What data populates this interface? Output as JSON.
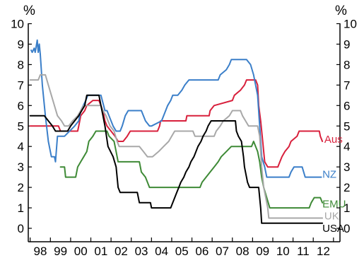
{
  "chart_data": {
    "type": "line",
    "left_unit_label": "%",
    "right_unit_label": "%",
    "ylim": [
      0,
      10
    ],
    "y_ticks": [
      0,
      1,
      2,
      3,
      4,
      5,
      6,
      7,
      8,
      9,
      10
    ],
    "xlim": [
      1997.5,
      2012.5
    ],
    "x_tick_labels": [
      {
        "label": "98",
        "x": 1998
      },
      {
        "label": "99",
        "x": 1999
      },
      {
        "label": "00",
        "x": 2000
      },
      {
        "label": "01",
        "x": 2001
      },
      {
        "label": "02",
        "x": 2002
      },
      {
        "label": "03",
        "x": 2003
      },
      {
        "label": "04",
        "x": 2004
      },
      {
        "label": "05",
        "x": 2005
      },
      {
        "label": "06",
        "x": 2006
      },
      {
        "label": "07",
        "x": 2007
      },
      {
        "label": "08",
        "x": 2008
      },
      {
        "label": "09",
        "x": 2009
      },
      {
        "label": "10",
        "x": 2010
      },
      {
        "label": "11",
        "x": 2011
      },
      {
        "label": "12",
        "x": 2012
      }
    ],
    "series": [
      {
        "name": "Aus",
        "color": "#d8203c",
        "points": [
          [
            1997.5,
            5.0
          ],
          [
            1998.9,
            5.0
          ],
          [
            1999.0,
            4.75
          ],
          [
            1999.85,
            4.75
          ],
          [
            1999.9,
            5.0
          ],
          [
            2000.0,
            5.5
          ],
          [
            2000.2,
            5.75
          ],
          [
            2000.3,
            6.0
          ],
          [
            2000.6,
            6.25
          ],
          [
            2000.9,
            6.25
          ],
          [
            2001.1,
            5.75
          ],
          [
            2001.2,
            5.25
          ],
          [
            2001.3,
            5.0
          ],
          [
            2001.7,
            4.5
          ],
          [
            2001.85,
            4.25
          ],
          [
            2002.1,
            4.25
          ],
          [
            2002.3,
            4.5
          ],
          [
            2002.45,
            4.75
          ],
          [
            2003.8,
            4.75
          ],
          [
            2003.9,
            5.0
          ],
          [
            2003.95,
            5.25
          ],
          [
            2005.2,
            5.25
          ],
          [
            2005.25,
            5.5
          ],
          [
            2006.35,
            5.5
          ],
          [
            2006.4,
            5.75
          ],
          [
            2006.6,
            6.0
          ],
          [
            2007.5,
            6.25
          ],
          [
            2007.6,
            6.5
          ],
          [
            2007.9,
            6.75
          ],
          [
            2008.1,
            7.0
          ],
          [
            2008.2,
            7.25
          ],
          [
            2008.65,
            7.25
          ],
          [
            2008.75,
            7.0
          ],
          [
            2008.8,
            6.0
          ],
          [
            2008.9,
            5.25
          ],
          [
            2009.0,
            4.25
          ],
          [
            2009.1,
            3.25
          ],
          [
            2009.25,
            3.0
          ],
          [
            2009.75,
            3.0
          ],
          [
            2009.85,
            3.25
          ],
          [
            2009.95,
            3.5
          ],
          [
            2010.1,
            3.75
          ],
          [
            2010.3,
            4.0
          ],
          [
            2010.4,
            4.25
          ],
          [
            2010.7,
            4.5
          ],
          [
            2010.8,
            4.75
          ],
          [
            2011.8,
            4.75
          ],
          [
            2011.85,
            4.5
          ],
          [
            2011.95,
            4.25
          ]
        ]
      },
      {
        "name": "NZ",
        "color": "#3b7fc9",
        "points": [
          [
            1997.55,
            8.7
          ],
          [
            1997.6,
            8.6
          ],
          [
            1997.7,
            8.8
          ],
          [
            1997.75,
            8.6
          ],
          [
            1997.8,
            8.9
          ],
          [
            1997.85,
            9.2
          ],
          [
            1997.9,
            8.6
          ],
          [
            1997.95,
            9.0
          ],
          [
            1998.0,
            8.5
          ],
          [
            1998.1,
            7.0
          ],
          [
            1998.25,
            5.5
          ],
          [
            1998.4,
            4.25
          ],
          [
            1998.55,
            3.5
          ],
          [
            1998.7,
            3.5
          ],
          [
            1998.75,
            3.25
          ],
          [
            1998.85,
            4.5
          ],
          [
            1999.2,
            4.5
          ],
          [
            1999.7,
            5.0
          ],
          [
            1999.9,
            5.25
          ],
          [
            2000.0,
            5.75
          ],
          [
            2000.25,
            6.25
          ],
          [
            2000.35,
            6.5
          ],
          [
            2001.0,
            6.5
          ],
          [
            2001.2,
            5.75
          ],
          [
            2001.3,
            5.75
          ],
          [
            2001.5,
            5.25
          ],
          [
            2001.6,
            5.0
          ],
          [
            2001.75,
            4.75
          ],
          [
            2001.95,
            4.75
          ],
          [
            2002.05,
            5.0
          ],
          [
            2002.2,
            5.5
          ],
          [
            2002.35,
            5.75
          ],
          [
            2003.0,
            5.75
          ],
          [
            2003.1,
            5.5
          ],
          [
            2003.2,
            5.25
          ],
          [
            2003.4,
            5.0
          ],
          [
            2003.5,
            5.0
          ],
          [
            2004.0,
            5.25
          ],
          [
            2004.1,
            5.5
          ],
          [
            2004.3,
            6.0
          ],
          [
            2004.45,
            6.25
          ],
          [
            2004.55,
            6.5
          ],
          [
            2004.8,
            6.5
          ],
          [
            2005.0,
            6.75
          ],
          [
            2005.15,
            7.0
          ],
          [
            2005.35,
            7.25
          ],
          [
            2006.8,
            7.25
          ],
          [
            2006.9,
            7.5
          ],
          [
            2007.2,
            7.75
          ],
          [
            2007.35,
            8.0
          ],
          [
            2007.45,
            8.25
          ],
          [
            2008.2,
            8.25
          ],
          [
            2008.4,
            8.0
          ],
          [
            2008.55,
            7.5
          ],
          [
            2008.75,
            6.5
          ],
          [
            2008.85,
            5.0
          ],
          [
            2008.95,
            3.5
          ],
          [
            2009.1,
            3.0
          ],
          [
            2009.2,
            2.5
          ],
          [
            2010.3,
            2.5
          ],
          [
            2010.4,
            2.75
          ],
          [
            2010.55,
            3.0
          ],
          [
            2010.95,
            3.0
          ],
          [
            2011.1,
            2.5
          ],
          [
            2011.9,
            2.5
          ]
        ]
      },
      {
        "name": "EMU",
        "color": "#3e8a36",
        "points": [
          [
            1999.0,
            3.0
          ],
          [
            1999.2,
            3.0
          ],
          [
            1999.25,
            2.5
          ],
          [
            1999.75,
            2.5
          ],
          [
            1999.85,
            3.0
          ],
          [
            2000.0,
            3.25
          ],
          [
            2000.15,
            3.5
          ],
          [
            2000.3,
            3.75
          ],
          [
            2000.4,
            4.25
          ],
          [
            2000.6,
            4.5
          ],
          [
            2000.75,
            4.75
          ],
          [
            2001.3,
            4.75
          ],
          [
            2001.4,
            4.5
          ],
          [
            2001.65,
            4.25
          ],
          [
            2001.75,
            3.75
          ],
          [
            2001.85,
            3.25
          ],
          [
            2002.9,
            3.25
          ],
          [
            2003.0,
            2.75
          ],
          [
            2003.2,
            2.5
          ],
          [
            2003.4,
            2.0
          ],
          [
            2005.9,
            2.0
          ],
          [
            2006.0,
            2.25
          ],
          [
            2006.2,
            2.5
          ],
          [
            2006.4,
            2.75
          ],
          [
            2006.6,
            3.0
          ],
          [
            2006.8,
            3.25
          ],
          [
            2006.95,
            3.5
          ],
          [
            2007.2,
            3.75
          ],
          [
            2007.45,
            4.0
          ],
          [
            2008.45,
            4.0
          ],
          [
            2008.55,
            4.25
          ],
          [
            2008.75,
            3.75
          ],
          [
            2008.85,
            3.25
          ],
          [
            2008.95,
            2.5
          ],
          [
            2009.05,
            2.0
          ],
          [
            2009.2,
            1.5
          ],
          [
            2009.35,
            1.0
          ],
          [
            2011.3,
            1.0
          ],
          [
            2011.4,
            1.25
          ],
          [
            2011.55,
            1.5
          ],
          [
            2011.85,
            1.5
          ],
          [
            2011.95,
            1.25
          ]
        ]
      },
      {
        "name": "UK",
        "color": "#a8a8a8",
        "points": [
          [
            1997.5,
            7.25
          ],
          [
            1997.9,
            7.25
          ],
          [
            1998.0,
            7.5
          ],
          [
            1998.25,
            7.5
          ],
          [
            1998.4,
            7.0
          ],
          [
            1998.55,
            6.5
          ],
          [
            1998.7,
            6.0
          ],
          [
            1998.85,
            5.5
          ],
          [
            1999.05,
            5.25
          ],
          [
            1999.2,
            5.0
          ],
          [
            1999.4,
            5.0
          ],
          [
            1999.6,
            5.25
          ],
          [
            1999.85,
            5.5
          ],
          [
            2000.0,
            5.75
          ],
          [
            2000.15,
            6.0
          ],
          [
            2001.0,
            6.0
          ],
          [
            2001.1,
            5.75
          ],
          [
            2001.25,
            5.5
          ],
          [
            2001.45,
            5.0
          ],
          [
            2001.65,
            4.75
          ],
          [
            2001.8,
            4.25
          ],
          [
            2001.9,
            4.0
          ],
          [
            2002.9,
            4.0
          ],
          [
            2003.1,
            3.75
          ],
          [
            2003.3,
            3.5
          ],
          [
            2003.55,
            3.5
          ],
          [
            2003.85,
            3.75
          ],
          [
            2004.1,
            4.0
          ],
          [
            2004.35,
            4.25
          ],
          [
            2004.5,
            4.5
          ],
          [
            2004.65,
            4.75
          ],
          [
            2005.55,
            4.75
          ],
          [
            2005.65,
            4.5
          ],
          [
            2006.6,
            4.5
          ],
          [
            2006.7,
            4.75
          ],
          [
            2006.9,
            5.0
          ],
          [
            2007.05,
            5.25
          ],
          [
            2007.35,
            5.5
          ],
          [
            2007.5,
            5.75
          ],
          [
            2007.9,
            5.75
          ],
          [
            2008.0,
            5.5
          ],
          [
            2008.15,
            5.25
          ],
          [
            2008.3,
            5.0
          ],
          [
            2008.75,
            5.0
          ],
          [
            2008.85,
            4.5
          ],
          [
            2008.95,
            3.0
          ],
          [
            2009.05,
            2.0
          ],
          [
            2009.15,
            1.5
          ],
          [
            2009.25,
            1.0
          ],
          [
            2009.3,
            0.5
          ],
          [
            2011.95,
            0.5
          ]
        ]
      },
      {
        "name": "USA",
        "color": "#000000",
        "points": [
          [
            1997.5,
            5.5
          ],
          [
            1998.2,
            5.5
          ],
          [
            1998.4,
            5.25
          ],
          [
            1998.6,
            5.0
          ],
          [
            1998.75,
            4.75
          ],
          [
            1999.35,
            4.75
          ],
          [
            1999.5,
            5.0
          ],
          [
            1999.7,
            5.25
          ],
          [
            1999.9,
            5.5
          ],
          [
            2000.05,
            5.75
          ],
          [
            2000.2,
            6.0
          ],
          [
            2000.3,
            6.5
          ],
          [
            2000.9,
            6.5
          ],
          [
            2001.0,
            6.0
          ],
          [
            2001.1,
            5.5
          ],
          [
            2001.2,
            5.0
          ],
          [
            2001.35,
            4.0
          ],
          [
            2001.6,
            3.5
          ],
          [
            2001.75,
            3.0
          ],
          [
            2001.85,
            2.0
          ],
          [
            2001.95,
            1.75
          ],
          [
            2002.8,
            1.75
          ],
          [
            2002.9,
            1.25
          ],
          [
            2003.45,
            1.25
          ],
          [
            2003.5,
            1.0
          ],
          [
            2004.45,
            1.0
          ],
          [
            2004.55,
            1.25
          ],
          [
            2004.65,
            1.5
          ],
          [
            2004.75,
            1.75
          ],
          [
            2004.85,
            2.0
          ],
          [
            2004.95,
            2.25
          ],
          [
            2005.1,
            2.5
          ],
          [
            2005.2,
            2.75
          ],
          [
            2005.35,
            3.0
          ],
          [
            2005.45,
            3.25
          ],
          [
            2005.6,
            3.5
          ],
          [
            2005.7,
            3.75
          ],
          [
            2005.8,
            4.0
          ],
          [
            2005.95,
            4.25
          ],
          [
            2006.05,
            4.5
          ],
          [
            2006.2,
            4.75
          ],
          [
            2006.3,
            5.0
          ],
          [
            2006.45,
            5.25
          ],
          [
            2007.65,
            5.25
          ],
          [
            2007.7,
            4.75
          ],
          [
            2007.8,
            4.5
          ],
          [
            2007.95,
            4.25
          ],
          [
            2008.05,
            3.5
          ],
          [
            2008.1,
            3.0
          ],
          [
            2008.25,
            2.25
          ],
          [
            2008.35,
            2.0
          ],
          [
            2008.8,
            2.0
          ],
          [
            2008.85,
            1.5
          ],
          [
            2008.9,
            1.0
          ],
          [
            2008.95,
            0.25
          ],
          [
            2011.95,
            0.25
          ]
        ]
      }
    ],
    "series_labels": [
      {
        "text": "Aus",
        "series": "Aus",
        "x": 2012.05,
        "y": 4.35
      },
      {
        "text": "NZ",
        "series": "NZ",
        "x": 2011.95,
        "y": 2.65
      },
      {
        "text": "EMU",
        "series": "EMU",
        "x": 2011.95,
        "y": 1.2
      },
      {
        "text": "UK",
        "series": "UK",
        "x": 2012.05,
        "y": 0.6
      },
      {
        "text": "USA",
        "series": "USA",
        "x": 2011.95,
        "y": 0.0
      }
    ]
  }
}
